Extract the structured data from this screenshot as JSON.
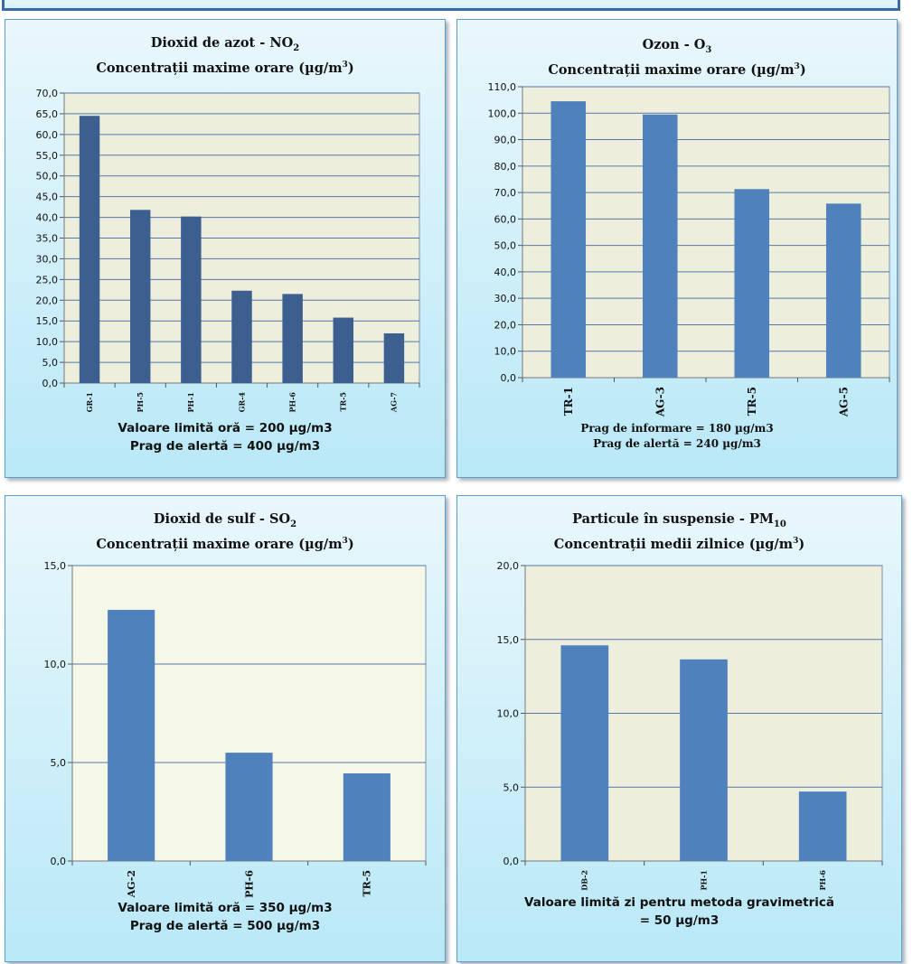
{
  "panels": [
    {
      "title_line1": "Dioxid de azot - NO",
      "title_sub1": "2",
      "title_line2": "Concentrații maxime orare (µg/m",
      "title_sup2": "3",
      "title_end2": ")",
      "notes": [
        "Valoare limită oră = 200 µg/m3",
        "Prag de alertă = 400 µg/m3"
      ]
    },
    {
      "title_line1": "Ozon - O",
      "title_sub1": "3",
      "title_line2": "Concentrații maxime orare (µg/m",
      "title_sup2": "3",
      "title_end2": ")",
      "notes": [
        "Prag de informare = 180 µg/m3",
        "Prag de alertă = 240 µg/m3"
      ]
    },
    {
      "title_line1": "Dioxid de sulf - SO",
      "title_sub1": "2",
      "title_line2": "Concentrații maxime orare (µg/m",
      "title_sup2": "3",
      "title_end2": ")",
      "notes": [
        "Valoare limită oră = 350 µg/m3",
        "Prag de alertă = 500 µg/m3"
      ]
    },
    {
      "title_line1": "Particule în suspensie - PM",
      "title_sub1": "10",
      "title_line2": "Concentrații medii zilnice (µg/m",
      "title_sup2": "3",
      "title_end2": ")",
      "notes": [
        "Valoare limită zi pentru metoda gravimetrică",
        "= 50 µg/m3"
      ]
    }
  ],
  "colors": {
    "bar_dark": "#3d5f90",
    "bar": "#4f81bd",
    "plot_bg": "#eeeedd",
    "plot_bg_light": "#f5f8e8",
    "grid": "#5577aa"
  },
  "chart_data": [
    {
      "type": "bar",
      "categories": [
        "GR-1",
        "PH-5",
        "PH-1",
        "GR-4",
        "PH-6",
        "TR-5",
        "AG-7"
      ],
      "values": [
        64.5,
        41.8,
        40.2,
        22.3,
        21.5,
        15.8,
        12.0
      ],
      "ylim": [
        0,
        70
      ],
      "yticks": [
        "0,0",
        "5,0",
        "10,0",
        "15,0",
        "20,0",
        "25,0",
        "30,0",
        "35,0",
        "40,0",
        "45,0",
        "50,0",
        "55,0",
        "60,0",
        "65,0",
        "70,0"
      ],
      "grid": true,
      "xlabel": "",
      "ylabel": ""
    },
    {
      "type": "bar",
      "categories": [
        "TR-1",
        "AG-3",
        "TR-5",
        "AG-5"
      ],
      "values": [
        104.5,
        99.5,
        71.3,
        65.8
      ],
      "ylim": [
        0,
        110
      ],
      "yticks": [
        "0,0",
        "10,0",
        "20,0",
        "30,0",
        "40,0",
        "50,0",
        "60,0",
        "70,0",
        "80,0",
        "90,0",
        "100,0",
        "110,0"
      ],
      "grid": true,
      "xlabel": "",
      "ylabel": ""
    },
    {
      "type": "bar",
      "categories": [
        "AG-2",
        "PH-6",
        "TR-5"
      ],
      "values": [
        12.75,
        5.5,
        4.45
      ],
      "ylim": [
        0,
        15
      ],
      "yticks": [
        "0,0",
        "5,0",
        "10,0",
        "15,0"
      ],
      "grid": true,
      "xlabel": "",
      "ylabel": ""
    },
    {
      "type": "bar",
      "categories": [
        "DB-2",
        "PH-1",
        "PH-6"
      ],
      "values": [
        14.6,
        13.65,
        4.7
      ],
      "ylim": [
        0,
        20
      ],
      "yticks": [
        "0,0",
        "5,0",
        "10,0",
        "15,0",
        "20,0"
      ],
      "grid": true,
      "xlabel": "",
      "ylabel": ""
    }
  ]
}
